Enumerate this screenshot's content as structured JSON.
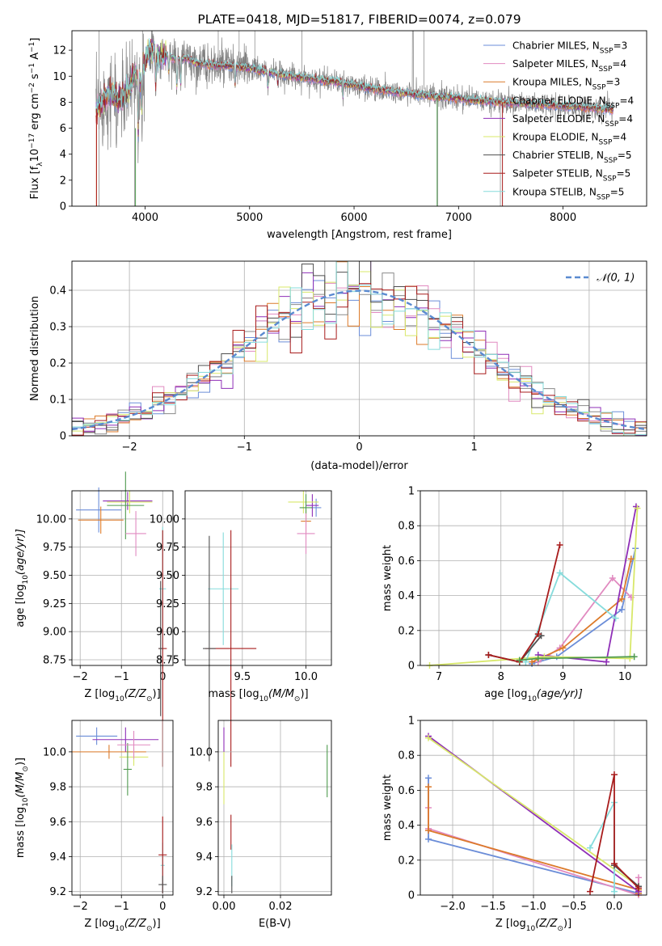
{
  "chart_data": [
    {
      "id": "spectrum",
      "type": "line",
      "title": "PLATE=0418, MJD=51817, FIBERID=0074, z=0.079",
      "xlabel": "wavelength [Angstrom, rest frame]",
      "ylabel_parts": [
        "Flux [f",
        "λ",
        "10",
        "−17",
        " erg cm",
        "−2",
        " s",
        "−1",
        " A",
        "−1",
        "]"
      ],
      "xlim": [
        3300,
        8800
      ],
      "ylim": [
        0,
        13.5
      ],
      "xticks": [
        4000,
        5000,
        6000,
        7000,
        8000
      ],
      "yticks": [
        0,
        2,
        4,
        6,
        8,
        10,
        12
      ],
      "grid": false,
      "legend_position": "top-right",
      "data_color": "#808080",
      "continuum_x": [
        3530,
        3560,
        3600,
        3650,
        3700,
        3750,
        3800,
        3850,
        3900,
        3950,
        4000,
        4050,
        4100,
        4200,
        4300,
        4400,
        4500,
        4600,
        4700,
        4800,
        4900,
        5000,
        5200,
        5400,
        5600,
        5800,
        6000,
        6200,
        6400,
        6600,
        6800,
        7000,
        7200,
        7400,
        7600,
        7800,
        8000,
        8200,
        8400,
        8500
      ],
      "continuum_y": [
        7.3,
        7.6,
        8.2,
        8.6,
        8.5,
        8.2,
        8.4,
        9.0,
        10.4,
        9.6,
        11.2,
        12.2,
        11.4,
        11.6,
        11.3,
        11.4,
        11.0,
        10.9,
        10.8,
        10.8,
        10.7,
        10.6,
        10.3,
        10.0,
        9.8,
        9.6,
        9.3,
        9.0,
        8.8,
        8.6,
        8.4,
        8.3,
        8.1,
        8.0,
        7.9,
        7.8,
        7.7,
        7.6,
        7.5,
        7.4
      ],
      "series": [
        {
          "name_parts": [
            "Chabrier MILES, N",
            "SSP",
            "=3"
          ],
          "color": "#6b8dd8"
        },
        {
          "name_parts": [
            "Salpeter MILES, N",
            "SSP",
            "=4"
          ],
          "color": "#e18ac0"
        },
        {
          "name_parts": [
            "Kroupa MILES, N",
            "SSP",
            "=3"
          ],
          "color": "#dc7a2a"
        },
        {
          "name_parts": [
            "Chabrier ELODIE, N",
            "SSP",
            "=4"
          ],
          "color": "#8a8a8a"
        },
        {
          "name_parts": [
            "Salpeter ELODIE, N",
            "SSP",
            "=4"
          ],
          "color": "#8f2fb7"
        },
        {
          "name_parts": [
            "Kroupa ELODIE, N",
            "SSP",
            "=4"
          ],
          "color": "#d8e86a"
        },
        {
          "name_parts": [
            "Chabrier STELIB, N",
            "SSP",
            "=5"
          ],
          "color": "#4f4f4f"
        },
        {
          "name_parts": [
            "Salpeter STELIB, N",
            "SSP",
            "=5"
          ],
          "color": "#a81c1c"
        },
        {
          "name_parts": [
            "Kroupa STELIB, N",
            "SSP",
            "=5"
          ],
          "color": "#86dcdc"
        }
      ]
    },
    {
      "id": "residuals",
      "type": "line",
      "xlabel": "(data-model)/error",
      "ylabel": "Normed distribution",
      "xlim": [
        -2.5,
        2.5
      ],
      "ylim": [
        0,
        0.48
      ],
      "xticks": [
        -2,
        -1,
        0,
        1,
        2
      ],
      "yticks": [
        0.0,
        0.1,
        0.2,
        0.3,
        0.4
      ],
      "grid": true,
      "legend": [
        {
          "name": "𝒩(0, 1)",
          "color": "#5a8ad0",
          "style": "dashed"
        }
      ],
      "legend_position": "top-right",
      "bins_edges": [
        -2.5,
        2.5
      ],
      "bin_width": 0.1,
      "hist_colors": [
        "#6b8dd8",
        "#e18ac0",
        "#dc7a2a",
        "#8a8a8a",
        "#8f2fb7",
        "#d8e86a",
        "#4f4f4f",
        "#a81c1c",
        "#86dcdc"
      ]
    },
    {
      "id": "age_vs_Z",
      "type": "scatter",
      "xlabel_parts": [
        "Z [log",
        "10",
        "(Z/Z",
        "⊙",
        ")]"
      ],
      "ylabel_parts": [
        "age  [log",
        "10",
        "(age/yr)]"
      ],
      "xlim": [
        -2.2,
        0.25
      ],
      "ylim": [
        8.7,
        10.25
      ],
      "xticks": [
        -2,
        -1,
        0
      ],
      "yticks": [
        8.75,
        9.0,
        9.25,
        9.5,
        9.75,
        10.0
      ],
      "ytick_labels": [
        "8.75",
        "9.00",
        "9.25",
        "9.50",
        "9.75",
        "10.00"
      ],
      "grid": true,
      "points": [
        {
          "x": -1.55,
          "y": 10.08,
          "xerr": 0.55,
          "yerr": 0.2,
          "color": "#6b8dd8"
        },
        {
          "x": -1.5,
          "y": 9.99,
          "xerr": 0.55,
          "yerr": 0.12,
          "color": "#dc7a2a"
        },
        {
          "x": -0.85,
          "y": 10.16,
          "xerr": 0.6,
          "yerr": 0.08,
          "color": "#8f2fb7"
        },
        {
          "x": -0.8,
          "y": 10.15,
          "xerr": 0.55,
          "yerr": 0.1,
          "color": "#d8e86a"
        },
        {
          "x": -0.9,
          "y": 10.12,
          "xerr": 0.45,
          "yerr": 0.3,
          "color": "#4f9a4f"
        },
        {
          "x": -0.65,
          "y": 9.87,
          "xerr": 0.25,
          "yerr": 0.2,
          "color": "#e18ac0"
        },
        {
          "x": 0.0,
          "y": 9.38,
          "xerr": 0.08,
          "yerr": 0.55,
          "color": "#86dcdc"
        },
        {
          "x": 0.0,
          "y": 8.85,
          "xerr": 0.1,
          "yerr": 1.05,
          "color": "#a81c1c"
        },
        {
          "x": -0.05,
          "y": 8.85,
          "xerr": 0.05,
          "yerr": 0.6,
          "color": "#4f4f4f"
        }
      ]
    },
    {
      "id": "age_vs_mass",
      "type": "scatter",
      "xlabel_parts": [
        "mass [log",
        "10",
        "(M/M",
        "⊙",
        ")]"
      ],
      "xlim": [
        9.05,
        10.2
      ],
      "ylim": [
        8.7,
        10.25
      ],
      "xticks": [
        9.5,
        10.0
      ],
      "xtick_labels": [
        "9.5",
        "10.0"
      ],
      "yticks": [
        8.75,
        9.0,
        9.25,
        9.5,
        9.75,
        10.0
      ],
      "ytick_labels": [
        "8.75",
        "9.00",
        "9.25",
        "9.50",
        "9.75",
        "10.00"
      ],
      "grid": true,
      "points": [
        {
          "x": 10.08,
          "y": 10.1,
          "xerr": 0.04,
          "yerr": 0.08,
          "color": "#6b8dd8"
        },
        {
          "x": 10.0,
          "y": 9.98,
          "xerr": 0.04,
          "yerr": 0.1,
          "color": "#dc7a2a"
        },
        {
          "x": 10.05,
          "y": 10.12,
          "xerr": 0.05,
          "yerr": 0.1,
          "color": "#8f2fb7"
        },
        {
          "x": 9.98,
          "y": 10.15,
          "xerr": 0.12,
          "yerr": 0.1,
          "color": "#d8e86a"
        },
        {
          "x": 10.0,
          "y": 10.1,
          "xerr": 0.05,
          "yerr": 0.12,
          "color": "#4f9a4f"
        },
        {
          "x": 10.0,
          "y": 9.87,
          "xerr": 0.07,
          "yerr": 0.18,
          "color": "#e18ac0"
        },
        {
          "x": 9.35,
          "y": 9.38,
          "xerr": 0.12,
          "yerr": 0.5,
          "color": "#86dcdc"
        },
        {
          "x": 9.41,
          "y": 8.85,
          "xerr": 0.2,
          "yerr": 1.05,
          "color": "#a81c1c"
        },
        {
          "x": 9.24,
          "y": 8.85,
          "xerr": 0.05,
          "yerr": 1.0,
          "color": "#4f4f4f"
        }
      ]
    },
    {
      "id": "weight_vs_age",
      "type": "line",
      "xlabel_parts": [
        "age  [log",
        "10",
        "(age/yr)]"
      ],
      "ylabel": "mass weight",
      "xlim": [
        6.7,
        10.35
      ],
      "ylim": [
        0,
        1.0
      ],
      "xticks": [
        7,
        8,
        9,
        10
      ],
      "yticks": [
        0.0,
        0.2,
        0.4,
        0.6,
        0.8,
        1.0
      ],
      "grid": true,
      "series": [
        {
          "color": "#6b8dd8",
          "x": [
            8.5,
            8.9,
            9.95,
            10.17
          ],
          "y": [
            0.01,
            0.05,
            0.32,
            0.67
          ]
        },
        {
          "color": "#e18ac0",
          "x": [
            8.6,
            8.95,
            9.8,
            10.1
          ],
          "y": [
            0.02,
            0.1,
            0.5,
            0.39
          ]
        },
        {
          "color": "#dc7a2a",
          "x": [
            8.5,
            9.0,
            9.95,
            10.1
          ],
          "y": [
            0.02,
            0.1,
            0.38,
            0.61
          ]
        },
        {
          "color": "#8f2fb7",
          "x": [
            8.6,
            9.7,
            10.18
          ],
          "y": [
            0.06,
            0.02,
            0.91
          ]
        },
        {
          "color": "#d8e86a",
          "x": [
            6.85,
            8.7,
            10.08,
            10.2
          ],
          "y": [
            0.0,
            0.05,
            0.04,
            0.9
          ]
        },
        {
          "color": "#86dcdc",
          "x": [
            8.4,
            8.95,
            9.85
          ],
          "y": [
            0.02,
            0.53,
            0.27
          ]
        },
        {
          "color": "#4f4f4f",
          "x": [
            7.8,
            8.3,
            8.65
          ],
          "y": [
            0.06,
            0.02,
            0.17
          ]
        },
        {
          "color": "#a81c1c",
          "x": [
            7.8,
            8.3,
            8.6,
            8.95
          ],
          "y": [
            0.06,
            0.02,
            0.18,
            0.69
          ]
        },
        {
          "color": "#4f9a4f",
          "x": [
            8.3,
            8.6,
            10.15
          ],
          "y": [
            0.03,
            0.04,
            0.05
          ]
        }
      ]
    },
    {
      "id": "mass_vs_Z",
      "type": "scatter",
      "xlabel_parts": [
        "Z [log",
        "10",
        "(Z/Z",
        "⊙",
        ")]"
      ],
      "ylabel_parts": [
        "mass [log",
        "10",
        "(M/M",
        "⊙",
        ")]"
      ],
      "xlim": [
        -2.2,
        0.25
      ],
      "ylim": [
        9.18,
        10.18
      ],
      "xticks": [
        -2,
        -1,
        0
      ],
      "yticks": [
        9.2,
        9.4,
        9.6,
        9.8,
        10.0
      ],
      "ytick_labels": [
        "9.2",
        "9.4",
        "9.6",
        "9.8",
        "10.0"
      ],
      "grid": true,
      "points": [
        {
          "x": -1.6,
          "y": 10.09,
          "xerr": 0.5,
          "yerr": 0.05,
          "color": "#6b8dd8"
        },
        {
          "x": -1.3,
          "y": 10.0,
          "xerr": 0.9,
          "yerr": 0.04,
          "color": "#dc7a2a"
        },
        {
          "x": -0.9,
          "y": 10.07,
          "xerr": 0.8,
          "yerr": 0.07,
          "color": "#8f2fb7"
        },
        {
          "x": -0.7,
          "y": 9.97,
          "xerr": 0.35,
          "yerr": 0.05,
          "color": "#d8e86a"
        },
        {
          "x": -0.85,
          "y": 9.9,
          "xerr": 0.1,
          "yerr": 0.15,
          "color": "#4f9a4f"
        },
        {
          "x": -0.7,
          "y": 10.04,
          "xerr": 0.4,
          "yerr": 0.08,
          "color": "#e18ac0"
        },
        {
          "x": 0.0,
          "y": 9.35,
          "xerr": 0.05,
          "yerr": 0.13,
          "color": "#86dcdc"
        },
        {
          "x": 0.0,
          "y": 9.41,
          "xerr": 0.1,
          "yerr": 0.22,
          "color": "#a81c1c"
        },
        {
          "x": 0.0,
          "y": 9.24,
          "xerr": 0.1,
          "yerr": 0.05,
          "color": "#4f4f4f"
        }
      ]
    },
    {
      "id": "mass_vs_EBV",
      "type": "scatter",
      "xlabel": "E(B-V)",
      "xlim": [
        -0.002,
        0.038
      ],
      "ylim": [
        9.18,
        10.18
      ],
      "xticks": [
        0.0,
        0.02
      ],
      "xtick_labels": [
        "0.00",
        "0.02"
      ],
      "yticks": [
        9.2,
        9.4,
        9.6,
        9.8,
        10.0
      ],
      "ytick_labels": [
        "9.2",
        "9.4",
        "9.6",
        "9.8",
        "10.0"
      ],
      "grid": true,
      "points": [
        {
          "x": 0.0,
          "y": 10.07,
          "yerr": 0.07,
          "color": "#8f2fb7"
        },
        {
          "x": 0.0,
          "y": 9.85,
          "yerr": 0.15,
          "color": "#d8e86a"
        },
        {
          "x": 0.0025,
          "y": 9.54,
          "yerr": 0.1,
          "color": "#a81c1c"
        },
        {
          "x": 0.0028,
          "y": 9.35,
          "yerr": 0.12,
          "color": "#86dcdc"
        },
        {
          "x": 0.0028,
          "y": 9.24,
          "yerr": 0.05,
          "color": "#4f4f4f"
        },
        {
          "x": 0.0365,
          "y": 9.89,
          "yerr": 0.15,
          "color": "#4f9a4f"
        }
      ]
    },
    {
      "id": "weight_vs_Z",
      "type": "line",
      "xlabel_parts": [
        "Z [log",
        "10",
        "(Z/Z",
        "⊙",
        ")]"
      ],
      "ylabel": "mass weight",
      "xlim": [
        -2.4,
        0.4
      ],
      "ylim": [
        0,
        1.0
      ],
      "xticks": [
        -2.0,
        -1.5,
        -1.0,
        -0.5,
        0.0
      ],
      "xtick_labels": [
        "−2.0",
        "−1.5",
        "−1.0",
        "−0.5",
        "0.0"
      ],
      "yticks": [
        0.0,
        0.2,
        0.4,
        0.6,
        0.8,
        1.0
      ],
      "grid": true,
      "series": [
        {
          "color": "#6b8dd8",
          "x": [
            -2.3,
            -2.3,
            0.3
          ],
          "y": [
            0.67,
            0.32,
            0.01
          ]
        },
        {
          "color": "#e18ac0",
          "x": [
            -2.3,
            -2.3,
            0.3,
            0.3
          ],
          "y": [
            0.5,
            0.38,
            0.0,
            0.1
          ]
        },
        {
          "color": "#dc7a2a",
          "x": [
            -2.3,
            -2.3,
            0.3,
            0.3
          ],
          "y": [
            0.62,
            0.37,
            0.03,
            0.01
          ]
        },
        {
          "color": "#8f2fb7",
          "x": [
            -2.3,
            0.3
          ],
          "y": [
            0.91,
            0.02
          ]
        },
        {
          "color": "#d8e86a",
          "x": [
            -2.3,
            0.3
          ],
          "y": [
            0.9,
            0.05
          ]
        },
        {
          "color": "#86dcdc",
          "x": [
            -0.3,
            0.0,
            0.0
          ],
          "y": [
            0.27,
            0.53,
            0.02
          ]
        },
        {
          "color": "#4f4f4f",
          "x": [
            0.0,
            0.3
          ],
          "y": [
            0.17,
            0.05
          ]
        },
        {
          "color": "#a81c1c",
          "x": [
            -0.3,
            0.0,
            0.0,
            0.3
          ],
          "y": [
            0.02,
            0.69,
            0.18,
            0.04
          ]
        }
      ]
    }
  ]
}
